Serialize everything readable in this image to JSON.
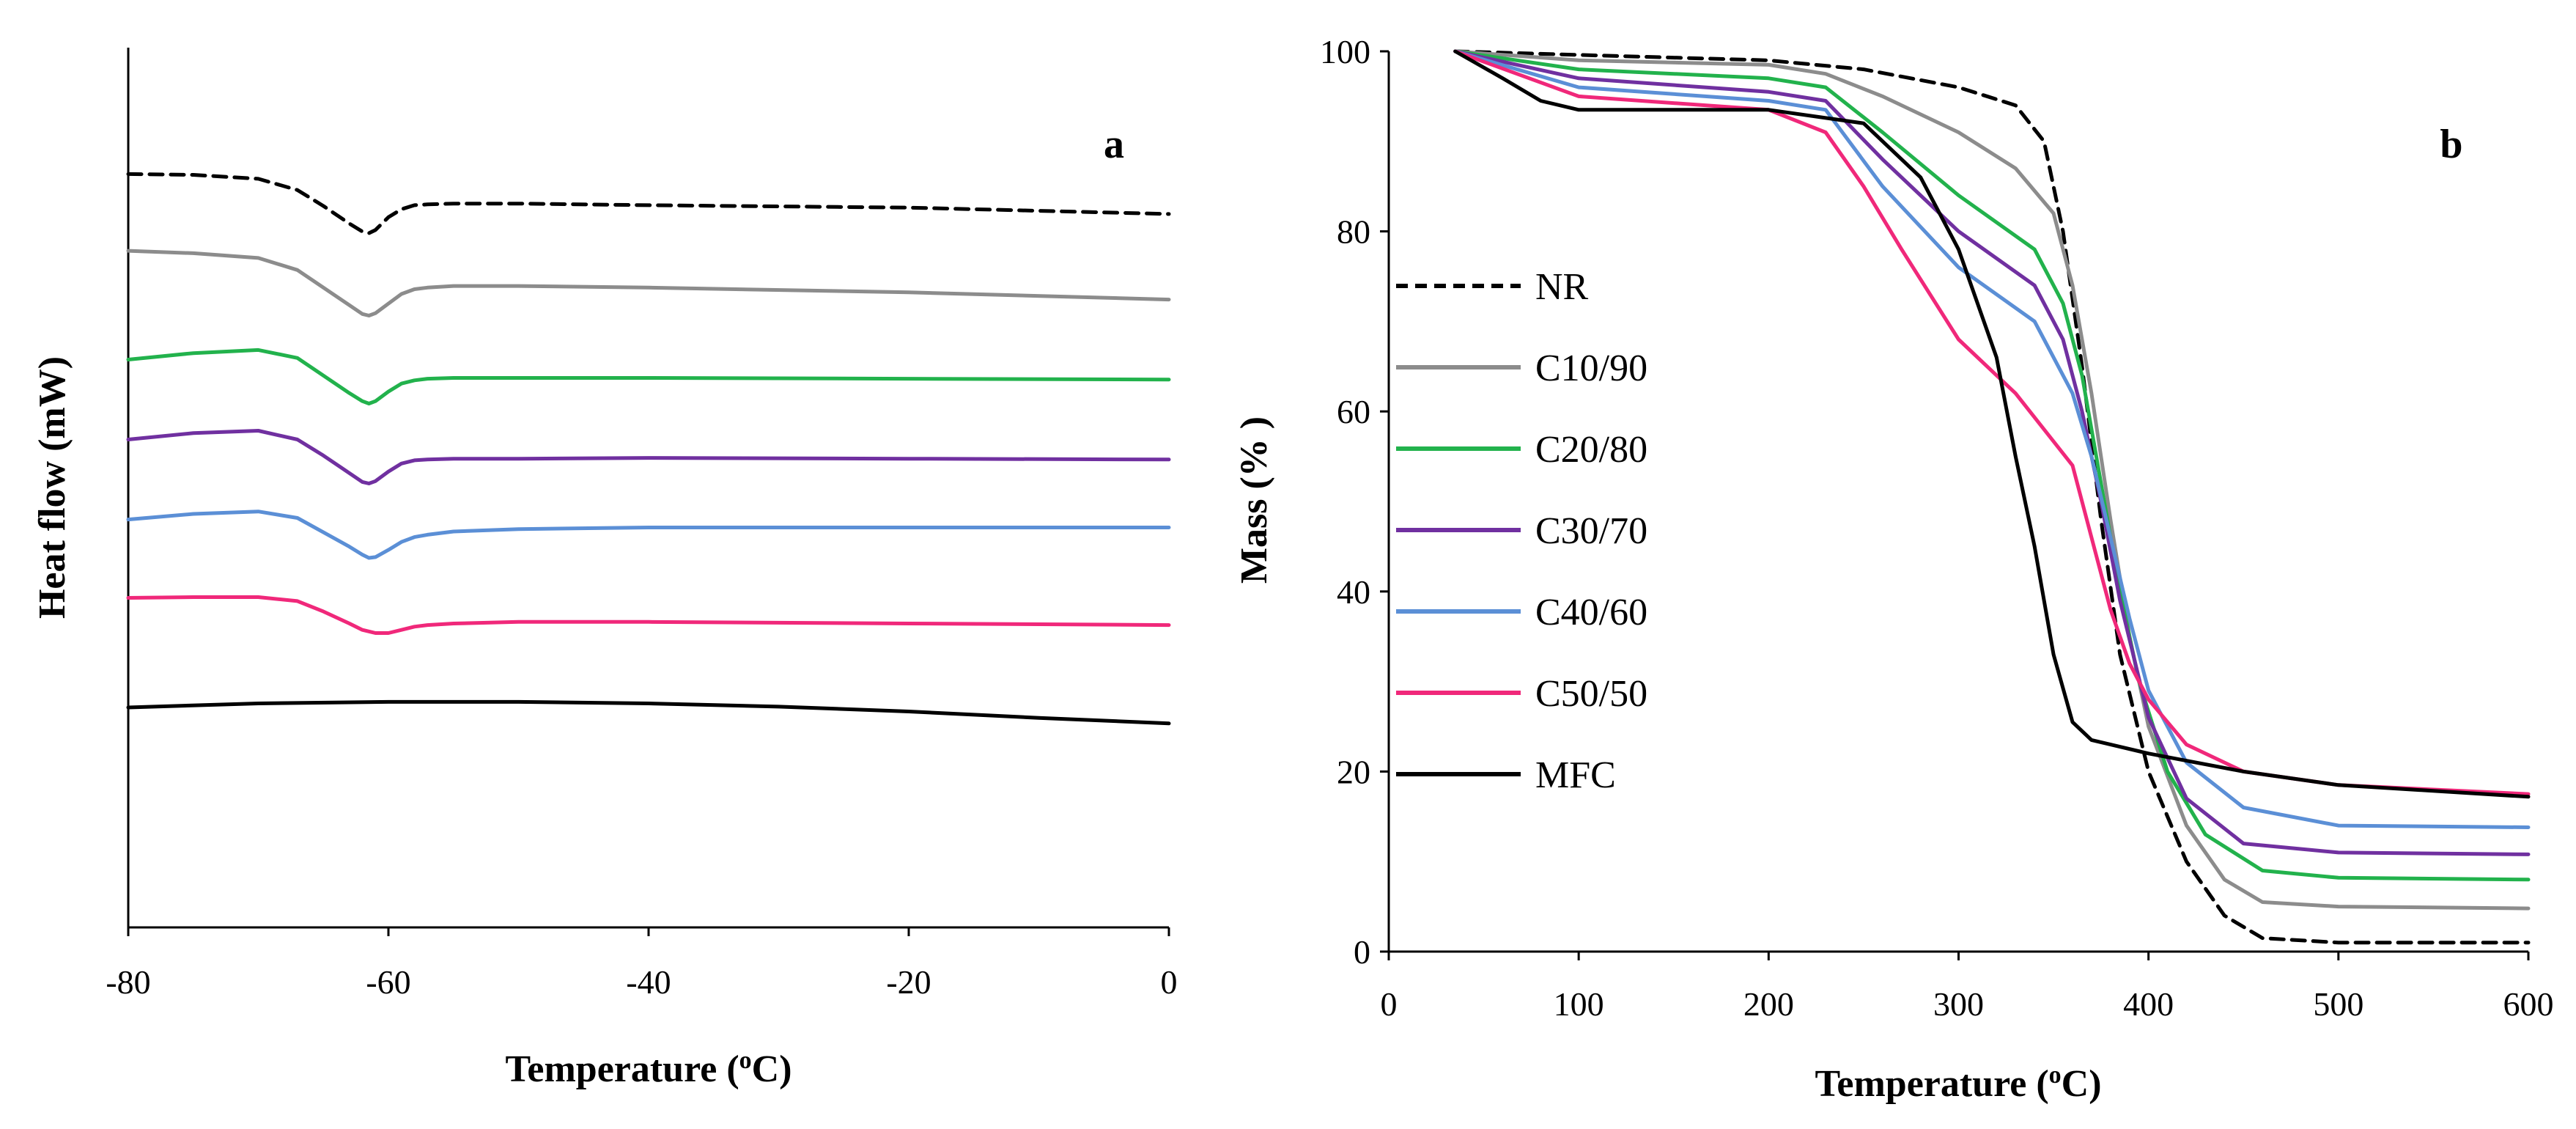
{
  "chart_data": [
    {
      "panel": "a",
      "type": "line",
      "title": "",
      "xlabel": "Temperature (",
      "xlabel_unit_sup": "o",
      "xlabel_unit_tail": "C)",
      "ylabel": "Heat flow (mW)",
      "xlim": [
        -80,
        0
      ],
      "xticks": [
        -80,
        -60,
        -40,
        -20,
        0
      ],
      "ylim": [
        -0.5,
        10.5
      ],
      "yticks": [],
      "grid": false,
      "series": [
        {
          "name": "NR",
          "color": "#000000",
          "dash": "dashed",
          "x": [
            -80,
            -75,
            -70,
            -67,
            -65,
            -63,
            -62,
            -61.5,
            -61,
            -60,
            -59,
            -58,
            -57,
            -55,
            -50,
            -40,
            -20,
            0
          ],
          "y": [
            8.92,
            8.91,
            8.86,
            8.72,
            8.52,
            8.3,
            8.2,
            8.18,
            8.22,
            8.38,
            8.48,
            8.53,
            8.54,
            8.55,
            8.55,
            8.53,
            8.5,
            8.42
          ]
        },
        {
          "name": "C10/90",
          "color": "#8c8c8c",
          "dash": "solid",
          "x": [
            -80,
            -75,
            -70,
            -67,
            -65,
            -63,
            -62,
            -61.5,
            -61,
            -60,
            -59,
            -58,
            -57,
            -55,
            -50,
            -40,
            -20,
            0
          ],
          "y": [
            7.96,
            7.93,
            7.87,
            7.72,
            7.5,
            7.28,
            7.17,
            7.15,
            7.18,
            7.3,
            7.42,
            7.48,
            7.5,
            7.52,
            7.52,
            7.5,
            7.44,
            7.35
          ]
        },
        {
          "name": "C20/80",
          "color": "#22b24c",
          "dash": "solid",
          "x": [
            -80,
            -75,
            -70,
            -67,
            -65,
            -63,
            -62,
            -61.5,
            -61,
            -60,
            -59,
            -58,
            -57,
            -55,
            -50,
            -40,
            -20,
            0
          ],
          "y": [
            6.6,
            6.68,
            6.72,
            6.62,
            6.4,
            6.18,
            6.08,
            6.05,
            6.08,
            6.2,
            6.3,
            6.34,
            6.36,
            6.37,
            6.37,
            6.37,
            6.36,
            6.35
          ]
        },
        {
          "name": "C30/70",
          "color": "#7030a0",
          "dash": "solid",
          "x": [
            -80,
            -75,
            -70,
            -67,
            -65,
            -63,
            -62,
            -61.5,
            -61,
            -60,
            -59,
            -58,
            -57,
            -55,
            -50,
            -40,
            -20,
            0
          ],
          "y": [
            5.6,
            5.68,
            5.71,
            5.6,
            5.4,
            5.18,
            5.07,
            5.05,
            5.08,
            5.2,
            5.3,
            5.34,
            5.35,
            5.36,
            5.36,
            5.37,
            5.36,
            5.35
          ]
        },
        {
          "name": "C40/60",
          "color": "#5b8fd6",
          "dash": "solid",
          "x": [
            -80,
            -75,
            -70,
            -67,
            -65,
            -63,
            -62,
            -61.5,
            -61,
            -60,
            -59,
            -58,
            -57,
            -55,
            -50,
            -40,
            -20,
            0
          ],
          "y": [
            4.6,
            4.67,
            4.7,
            4.62,
            4.44,
            4.26,
            4.16,
            4.12,
            4.13,
            4.22,
            4.32,
            4.38,
            4.41,
            4.45,
            4.48,
            4.5,
            4.5,
            4.5
          ]
        },
        {
          "name": "C50/50",
          "color": "#f0287a",
          "dash": "solid",
          "x": [
            -80,
            -75,
            -70,
            -67,
            -65,
            -63,
            -62,
            -61,
            -60,
            -59,
            -58,
            -57,
            -55,
            -50,
            -40,
            -20,
            0
          ],
          "y": [
            3.62,
            3.63,
            3.63,
            3.58,
            3.45,
            3.3,
            3.22,
            3.18,
            3.18,
            3.22,
            3.26,
            3.28,
            3.3,
            3.32,
            3.32,
            3.3,
            3.28
          ]
        },
        {
          "name": "MFC",
          "color": "#000000",
          "dash": "solid",
          "x": [
            -80,
            -70,
            -60,
            -50,
            -40,
            -30,
            -20,
            -10,
            0
          ],
          "y": [
            2.25,
            2.3,
            2.32,
            2.32,
            2.3,
            2.26,
            2.2,
            2.12,
            2.05
          ]
        }
      ]
    },
    {
      "panel": "b",
      "type": "line",
      "title": "",
      "xlabel": "Temperature (",
      "xlabel_unit_sup": "o",
      "xlabel_unit_tail": "C)",
      "ylabel": "Mass (% )",
      "xlim": [
        0,
        600
      ],
      "xticks": [
        0,
        100,
        200,
        300,
        400,
        500,
        600
      ],
      "ylim": [
        0,
        100
      ],
      "yticks": [
        0,
        20,
        40,
        60,
        80,
        100
      ],
      "grid": false,
      "legend": "left",
      "series": [
        {
          "name": "NR",
          "color": "#000000",
          "dash": "dashed",
          "x": [
            35,
            100,
            200,
            250,
            300,
            330,
            345,
            355,
            365,
            375,
            385,
            400,
            420,
            440,
            460,
            500,
            600
          ],
          "y": [
            100,
            99.6,
            99,
            98,
            96,
            94,
            90,
            80,
            65,
            48,
            33,
            20,
            10,
            4,
            1.5,
            1,
            1
          ]
        },
        {
          "name": "C10/90",
          "color": "#8c8c8c",
          "dash": "solid",
          "x": [
            35,
            100,
            200,
            230,
            260,
            300,
            330,
            350,
            360,
            370,
            380,
            390,
            400,
            420,
            440,
            460,
            500,
            600
          ],
          "y": [
            100,
            99,
            98.5,
            97.5,
            95,
            91,
            87,
            82,
            74,
            62,
            48,
            35,
            25,
            14,
            8,
            5.5,
            5,
            4.8
          ]
        },
        {
          "name": "C20/80",
          "color": "#22b24c",
          "dash": "solid",
          "x": [
            35,
            100,
            200,
            230,
            260,
            300,
            340,
            355,
            365,
            375,
            385,
            395,
            410,
            430,
            460,
            500,
            600
          ],
          "y": [
            100,
            98,
            97,
            96,
            91,
            84,
            78,
            72,
            64,
            52,
            40,
            30,
            20,
            13,
            9,
            8.2,
            8
          ]
        },
        {
          "name": "C30/70",
          "color": "#7030a0",
          "dash": "solid",
          "x": [
            35,
            100,
            200,
            230,
            260,
            300,
            340,
            355,
            365,
            375,
            385,
            400,
            420,
            450,
            500,
            600
          ],
          "y": [
            100,
            97,
            95.5,
            94.5,
            88,
            80,
            74,
            68,
            60,
            50,
            39,
            26,
            17,
            12,
            11,
            10.8
          ]
        },
        {
          "name": "C40/60",
          "color": "#5b8fd6",
          "dash": "solid",
          "x": [
            35,
            100,
            200,
            230,
            260,
            300,
            340,
            360,
            370,
            380,
            390,
            400,
            420,
            450,
            500,
            600
          ],
          "y": [
            100,
            96,
            94.5,
            93.5,
            85,
            76,
            70,
            62,
            55,
            46,
            37,
            29,
            21,
            16,
            14,
            13.8
          ]
        },
        {
          "name": "C50/50",
          "color": "#f0287a",
          "dash": "solid",
          "x": [
            35,
            100,
            200,
            230,
            250,
            270,
            300,
            330,
            360,
            370,
            380,
            390,
            400,
            420,
            450,
            500,
            600
          ],
          "y": [
            100,
            95,
            93.5,
            91,
            85,
            78,
            68,
            62,
            54,
            46,
            38,
            32,
            28,
            23,
            20,
            18.5,
            17.5
          ]
        },
        {
          "name": "MFC",
          "color": "#000000",
          "dash": "solid",
          "x": [
            35,
            60,
            80,
            100,
            200,
            250,
            280,
            300,
            320,
            330,
            340,
            350,
            360,
            370,
            400,
            450,
            500,
            600
          ],
          "y": [
            100,
            97,
            94.5,
            93.5,
            93.5,
            92,
            86,
            78,
            66,
            55,
            45,
            33,
            25.5,
            23.5,
            22,
            20,
            18.5,
            17.2
          ]
        }
      ]
    }
  ]
}
